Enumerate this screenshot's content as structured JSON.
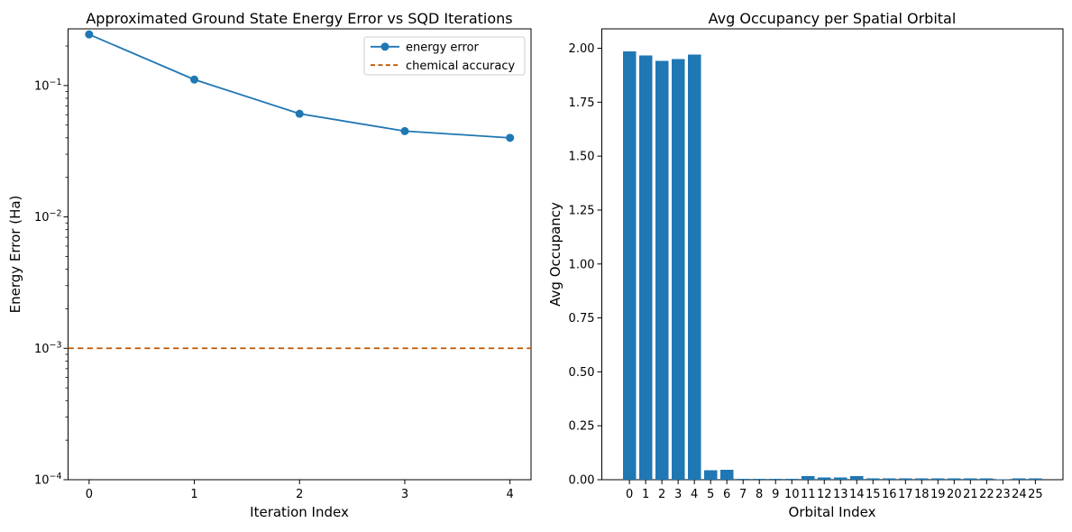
{
  "figure": {
    "background": "#ffffff",
    "accent_blue": "#1f77b4",
    "accent_orange": "#BF5700"
  },
  "chart_data": [
    {
      "type": "line",
      "title": "Approximated Ground State Energy Error vs SQD Iterations",
      "xlabel": "Iteration Index",
      "ylabel": "Energy Error (Ha)",
      "yscale": "log",
      "xlim": [
        -0.2,
        4.2
      ],
      "ylim": [
        0.0001,
        0.27
      ],
      "xticks": [
        "0",
        "1",
        "2",
        "3",
        "4"
      ],
      "ytick_exponents": [
        -1,
        -2,
        -3,
        -4
      ],
      "ytick_base": "10",
      "grid": false,
      "series": [
        {
          "name": "energy error",
          "x": [
            0,
            1,
            2,
            3,
            4
          ],
          "y": [
            0.245,
            0.111,
            0.061,
            0.045,
            0.04
          ],
          "color": "#1f77b4",
          "marker": "circle",
          "style": "solid"
        }
      ],
      "hline": {
        "name": "chemical accuracy",
        "y": 0.001,
        "color": "#BF5700",
        "style": "dashed"
      },
      "legend": {
        "position": "upper-right",
        "entries": [
          {
            "label": "energy error",
            "color": "#1f77b4",
            "style": "solid",
            "marker": "circle"
          },
          {
            "label": "chemical accuracy",
            "color": "#BF5700",
            "style": "dashed",
            "marker": "none"
          }
        ]
      }
    },
    {
      "type": "bar",
      "title": "Avg Occupancy per Spatial Orbital",
      "xlabel": "Orbital Index",
      "ylabel": "Avg Occupancy",
      "categories": [
        "0",
        "1",
        "2",
        "3",
        "4",
        "5",
        "6",
        "7",
        "8",
        "9",
        "10",
        "11",
        "12",
        "13",
        "14",
        "15",
        "16",
        "17",
        "18",
        "19",
        "20",
        "21",
        "22",
        "23",
        "24",
        "25"
      ],
      "values": [
        1.985,
        1.966,
        1.942,
        1.949,
        1.97,
        0.044,
        0.047,
        0.005,
        0.005,
        0.005,
        0.005,
        0.016,
        0.01,
        0.011,
        0.016,
        0.006,
        0.006,
        0.006,
        0.007,
        0.006,
        0.006,
        0.006,
        0.006,
        0.002,
        0.006,
        0.007
      ],
      "bar_color": "#1f77b4",
      "ylim": [
        0,
        2.09
      ],
      "yticks": [
        "0.00",
        "0.25",
        "0.50",
        "0.75",
        "1.00",
        "1.25",
        "1.50",
        "1.75",
        "2.00"
      ],
      "grid": false,
      "legend_position": "none"
    }
  ]
}
